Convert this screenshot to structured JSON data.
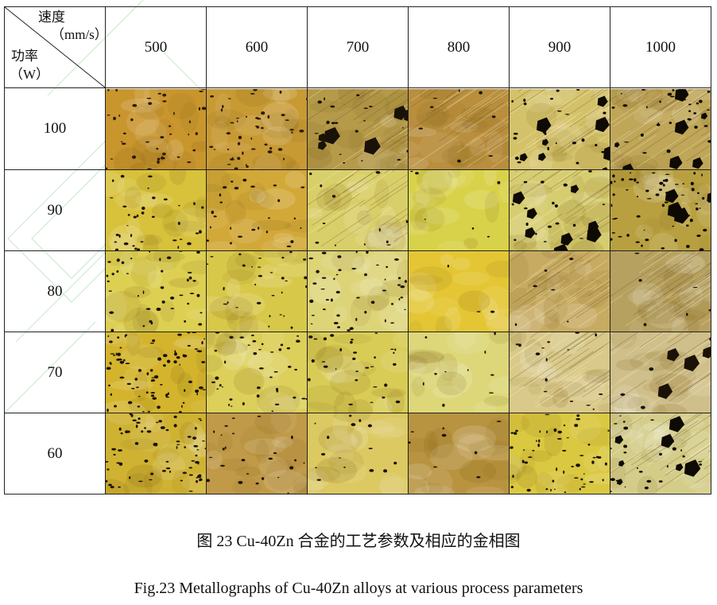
{
  "table": {
    "header": {
      "speed_label": "速度",
      "speed_unit": "（mm/s）",
      "power_label": "功率",
      "power_unit": "（W）"
    },
    "speeds": [
      "500",
      "600",
      "700",
      "800",
      "900",
      "1000"
    ],
    "powers": [
      "100",
      "90",
      "80",
      "70",
      "60"
    ],
    "micrographs": [
      [
        {
          "base": "#c9962e",
          "dark": "#2a1a08",
          "pores": 40,
          "streaks": false,
          "big": false
        },
        {
          "base": "#c89a34",
          "dark": "#2a1a08",
          "pores": 45,
          "streaks": false,
          "big": false
        },
        {
          "base": "#b59a4a",
          "dark": "#1a1206",
          "pores": 18,
          "streaks": true,
          "big": true
        },
        {
          "base": "#b98f3e",
          "dark": "#1a1206",
          "pores": 8,
          "streaks": true,
          "big": false
        },
        {
          "base": "#d4c26a",
          "dark": "#0e0a04",
          "pores": 22,
          "streaks": true,
          "big": true
        },
        {
          "base": "#bfa658",
          "dark": "#0e0a04",
          "pores": 30,
          "streaks": true,
          "big": true
        }
      ],
      [
        {
          "base": "#d8c23c",
          "dark": "#1a1206",
          "pores": 35,
          "streaks": false,
          "big": false
        },
        {
          "base": "#d2a838",
          "dark": "#1a1206",
          "pores": 25,
          "streaks": false,
          "big": false
        },
        {
          "base": "#d9cf6a",
          "dark": "#1a1206",
          "pores": 12,
          "streaks": true,
          "big": false
        },
        {
          "base": "#d8d24a",
          "dark": "#1a1206",
          "pores": 6,
          "streaks": false,
          "big": false
        },
        {
          "base": "#d6cc70",
          "dark": "#0e0a04",
          "pores": 20,
          "streaks": true,
          "big": true
        },
        {
          "base": "#b8a040",
          "dark": "#0c0802",
          "pores": 60,
          "streaks": false,
          "big": true
        }
      ],
      [
        {
          "base": "#dccf52",
          "dark": "#1a1206",
          "pores": 40,
          "streaks": false,
          "big": false
        },
        {
          "base": "#d8c84a",
          "dark": "#1a1206",
          "pores": 30,
          "streaks": false,
          "big": false
        },
        {
          "base": "#ddd478",
          "dark": "#1a1206",
          "pores": 45,
          "streaks": false,
          "big": false
        },
        {
          "base": "#e4c634",
          "dark": "#1a1206",
          "pores": 3,
          "streaks": false,
          "big": false
        },
        {
          "base": "#c7ab62",
          "dark": "#1a1206",
          "pores": 6,
          "streaks": true,
          "big": false
        },
        {
          "base": "#b7a160",
          "dark": "#1a1206",
          "pores": 6,
          "streaks": true,
          "big": false
        }
      ],
      [
        {
          "base": "#d3b42c",
          "dark": "#1a1206",
          "pores": 80,
          "streaks": false,
          "big": false
        },
        {
          "base": "#dccf5a",
          "dark": "#1a1206",
          "pores": 40,
          "streaks": false,
          "big": false
        },
        {
          "base": "#d8cc56",
          "dark": "#1a1206",
          "pores": 30,
          "streaks": false,
          "big": false
        },
        {
          "base": "#ddd77a",
          "dark": "#1a1206",
          "pores": 10,
          "streaks": false,
          "big": false
        },
        {
          "base": "#d9c98a",
          "dark": "#1a1206",
          "pores": 15,
          "streaks": true,
          "big": false
        },
        {
          "base": "#cfbf8a",
          "dark": "#1a1206",
          "pores": 4,
          "streaks": true,
          "big": true
        }
      ],
      [
        {
          "base": "#cfb232",
          "dark": "#1a1206",
          "pores": 70,
          "streaks": false,
          "big": false
        },
        {
          "base": "#c09a48",
          "dark": "#1a1206",
          "pores": 25,
          "streaks": false,
          "big": false
        },
        {
          "base": "#dcc962",
          "dark": "#1a1206",
          "pores": 15,
          "streaks": false,
          "big": false
        },
        {
          "base": "#b89440",
          "dark": "#1a1206",
          "pores": 8,
          "streaks": false,
          "big": false
        },
        {
          "base": "#dac840",
          "dark": "#1a1206",
          "pores": 55,
          "streaks": false,
          "big": false
        },
        {
          "base": "#d4cd8a",
          "dark": "#0e0a04",
          "pores": 25,
          "streaks": true,
          "big": true
        }
      ]
    ]
  },
  "caption_cn": "图 23 Cu-40Zn 合金的工艺参数及相应的金相图",
  "caption_en": "Fig.23 Metallographs of Cu-40Zn alloys at various process parameters"
}
